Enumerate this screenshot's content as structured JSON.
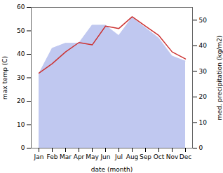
{
  "chart_data": {
    "type": "line",
    "xlabel": "date (month)",
    "ylabel": "max temp (C)",
    "y2label": "med. precipitation (kg/m2)",
    "categories": [
      "Jan",
      "Feb",
      "Mar",
      "Apr",
      "May",
      "Jun",
      "Jul",
      "Aug",
      "Sep",
      "Oct",
      "Nov",
      "Dec"
    ],
    "series": [
      {
        "type": "area",
        "axis": "y2",
        "color": "#c0c8f0",
        "values": [
          29,
          39,
          41,
          41,
          48,
          48,
          44,
          51,
          47,
          43,
          36,
          34
        ]
      },
      {
        "type": "line",
        "color": "#cc3333",
        "values": [
          32,
          36,
          41,
          45,
          44,
          52,
          51,
          56,
          52,
          48,
          41,
          38
        ]
      }
    ],
    "ylim": [
      0,
      60
    ],
    "yticks": [
      0,
      10,
      20,
      30,
      40,
      50,
      60
    ],
    "y2lim": [
      0,
      55
    ],
    "y2ticks": [
      0,
      10,
      20,
      30,
      40,
      50
    ],
    "grid": false
  }
}
